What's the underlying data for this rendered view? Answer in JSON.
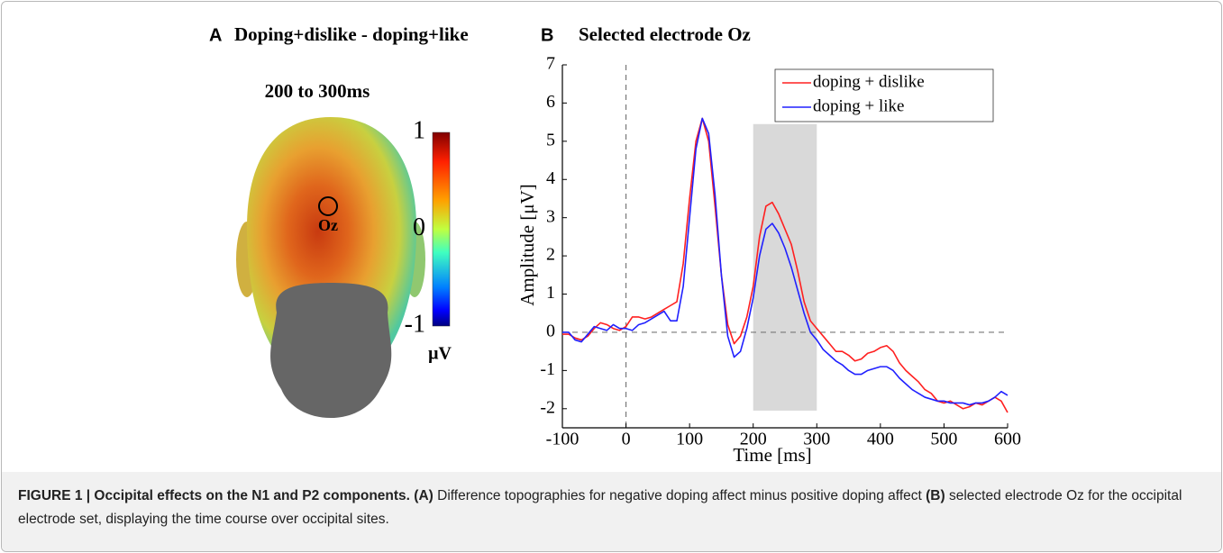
{
  "panel_a": {
    "label": "A",
    "title": "Doping+dislike - doping+like",
    "time_window": "200 to 300ms",
    "electrode": "Oz",
    "colorbar": {
      "clim": [
        -1,
        1
      ],
      "ticks": [
        1,
        0,
        -1
      ],
      "unit": "μV"
    }
  },
  "chart_data": {
    "type": "line",
    "panel_label": "B",
    "title": "Selected electrode Oz",
    "x_label": "Time [ms]",
    "y_label": "Amplitude [μV]",
    "xlim": [
      -100,
      600
    ],
    "ylim": [
      -2.5,
      7
    ],
    "xticks": [
      -100,
      0,
      100,
      200,
      300,
      400,
      500,
      600
    ],
    "yticks": [
      -2,
      -1,
      0,
      1,
      2,
      3,
      4,
      5,
      6,
      7
    ],
    "legend": "upper right",
    "shaded_region": {
      "x": [
        200,
        300
      ],
      "y": [
        -2.05,
        5.45
      ],
      "color": "#d9d9d9"
    },
    "x": [
      -100,
      -90,
      -80,
      -70,
      -60,
      -50,
      -40,
      -30,
      -20,
      -10,
      0,
      10,
      20,
      30,
      40,
      50,
      60,
      70,
      80,
      90,
      100,
      110,
      120,
      130,
      140,
      150,
      160,
      170,
      180,
      190,
      200,
      210,
      220,
      230,
      240,
      250,
      260,
      270,
      280,
      290,
      300,
      310,
      320,
      330,
      340,
      350,
      360,
      370,
      380,
      390,
      400,
      410,
      420,
      430,
      440,
      450,
      460,
      470,
      480,
      490,
      500,
      510,
      520,
      530,
      540,
      550,
      560,
      570,
      580,
      590,
      600
    ],
    "series": [
      {
        "name": "doping + dislike",
        "color": "#ff2020",
        "values": [
          -0.05,
          -0.05,
          -0.15,
          -0.2,
          -0.1,
          0.1,
          0.25,
          0.2,
          0.1,
          0.05,
          0.15,
          0.4,
          0.4,
          0.35,
          0.4,
          0.5,
          0.6,
          0.7,
          0.8,
          1.8,
          3.5,
          5.0,
          5.6,
          5.0,
          3.3,
          1.5,
          0.2,
          -0.3,
          -0.1,
          0.4,
          1.2,
          2.5,
          3.3,
          3.4,
          3.1,
          2.7,
          2.3,
          1.6,
          0.8,
          0.3,
          0.1,
          -0.1,
          -0.3,
          -0.5,
          -0.5,
          -0.6,
          -0.75,
          -0.7,
          -0.55,
          -0.5,
          -0.4,
          -0.35,
          -0.5,
          -0.8,
          -1.0,
          -1.15,
          -1.3,
          -1.5,
          -1.6,
          -1.8,
          -1.85,
          -1.8,
          -1.9,
          -2.0,
          -1.95,
          -1.85,
          -1.9,
          -1.8,
          -1.7,
          -1.8,
          -2.1
        ]
      },
      {
        "name": "doping + like",
        "color": "#2020ff",
        "values": [
          0,
          0,
          -0.2,
          -0.25,
          -0.05,
          0.15,
          0.1,
          0.05,
          0.2,
          0.1,
          0.1,
          0.05,
          0.2,
          0.25,
          0.35,
          0.45,
          0.55,
          0.3,
          0.3,
          1.2,
          3.0,
          4.8,
          5.6,
          5.2,
          3.6,
          1.5,
          -0.1,
          -0.65,
          -0.5,
          0.1,
          0.9,
          2.0,
          2.7,
          2.85,
          2.6,
          2.2,
          1.7,
          1.1,
          0.5,
          0.0,
          -0.2,
          -0.45,
          -0.6,
          -0.75,
          -0.85,
          -1.0,
          -1.1,
          -1.1,
          -1.0,
          -0.95,
          -0.9,
          -0.9,
          -1.0,
          -1.2,
          -1.35,
          -1.5,
          -1.6,
          -1.7,
          -1.75,
          -1.8,
          -1.8,
          -1.85,
          -1.85,
          -1.85,
          -1.9,
          -1.85,
          -1.85,
          -1.8,
          -1.7,
          -1.55,
          -1.65
        ]
      }
    ]
  },
  "caption": {
    "runs": [
      {
        "text": "FIGURE 1 | Occipital effects on the N1 and P2 components.",
        "bold": true
      },
      {
        "text": " (A)",
        "bold": true
      },
      {
        "text": " Difference topographies for negative doping affect minus positive doping affect ",
        "bold": false
      },
      {
        "text": "(B)",
        "bold": true
      },
      {
        "text": " selected electrode Oz for the occipital electrode set, displaying the time course over occipital sites.",
        "bold": false
      }
    ]
  }
}
